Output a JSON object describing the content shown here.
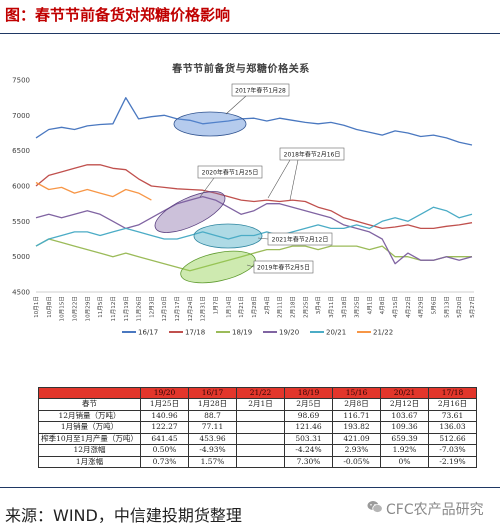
{
  "header": {
    "title": "图：春节节前备货对郑糖价格影响"
  },
  "chart_data": {
    "type": "line",
    "title": "春节节前备货与郑糖价格关系",
    "xlabel": "",
    "ylabel": "",
    "ylim": [
      4500,
      7500
    ],
    "yticks": [
      7500,
      7000,
      6500,
      6000,
      5500,
      5000,
      4500
    ],
    "grid": false,
    "legend_position": "bottom",
    "categories": [
      "10月1日",
      "10月8日",
      "10月15日",
      "10月22日",
      "10月29日",
      "11月5日",
      "11月12日",
      "11月19日",
      "11月26日",
      "12月3日",
      "12月10日",
      "12月17日",
      "12月24日",
      "12月31日",
      "1月7日",
      "1月14日",
      "1月21日",
      "1月28日",
      "2月4日",
      "2月11日",
      "2月18日",
      "2月25日",
      "3月4日",
      "3月11日",
      "3月18日",
      "3月25日",
      "4月1日",
      "4月8日",
      "4月15日",
      "4月22日",
      "4月29日",
      "5月6日",
      "5月13日",
      "5月20日",
      "5月27日"
    ],
    "series": [
      {
        "name": "16/17",
        "color": "#4A78C0",
        "values": [
          6680,
          6800,
          6830,
          6800,
          6850,
          6870,
          6880,
          7250,
          6950,
          6980,
          7000,
          6950,
          6930,
          6880,
          6900,
          6920,
          6950,
          6960,
          6920,
          6960,
          6930,
          6900,
          6880,
          6900,
          6860,
          6800,
          6760,
          6720,
          6780,
          6750,
          6700,
          6720,
          6680,
          6620,
          6580
        ]
      },
      {
        "name": "17/18",
        "color": "#C0504D",
        "values": [
          6000,
          6150,
          6200,
          6250,
          6300,
          6300,
          6250,
          6230,
          6100,
          6000,
          5980,
          5960,
          5950,
          5940,
          5900,
          5850,
          5800,
          5780,
          5800,
          5780,
          5800,
          5780,
          5700,
          5650,
          5550,
          5500,
          5450,
          5400,
          5420,
          5450,
          5400,
          5400,
          5430,
          5450,
          5480
        ]
      },
      {
        "name": "18/19",
        "color": "#9BBB59",
        "values": [
          5150,
          5250,
          5200,
          5150,
          5100,
          5050,
          5000,
          5050,
          5000,
          4950,
          4900,
          4850,
          4800,
          4850,
          4900,
          4950,
          5000,
          5050,
          5100,
          5100,
          5150,
          5150,
          5100,
          5150,
          5150,
          5150,
          5100,
          5150,
          5000,
          5000,
          4950,
          4950,
          5000,
          5000,
          5000
        ]
      },
      {
        "name": "19/20",
        "color": "#8064A2",
        "values": [
          5550,
          5600,
          5550,
          5600,
          5650,
          5600,
          5500,
          5400,
          5450,
          5550,
          5650,
          5750,
          5800,
          5850,
          5800,
          5700,
          5600,
          5650,
          5750,
          5750,
          5700,
          5650,
          5600,
          5550,
          5450,
          5400,
          5350,
          5250,
          4900,
          5050,
          4950,
          4950,
          5000,
          4950,
          5000
        ]
      },
      {
        "name": "20/21",
        "color": "#4BACC6",
        "values": [
          5150,
          5250,
          5300,
          5350,
          5350,
          5300,
          5350,
          5400,
          5350,
          5300,
          5250,
          5250,
          5300,
          5350,
          5300,
          5250,
          5300,
          5300,
          5350,
          5300,
          5350,
          5400,
          5450,
          5400,
          5400,
          5450,
          5400,
          5500,
          5550,
          5500,
          5600,
          5700,
          5650,
          5550,
          5600
        ]
      },
      {
        "name": "21/22",
        "color": "#F79646",
        "values": [
          6050,
          5950,
          5980,
          5900,
          5950,
          5900,
          5850,
          5950,
          5900,
          5800,
          null,
          null,
          null,
          null,
          null,
          null,
          null,
          null,
          null,
          null,
          null,
          null,
          null,
          null,
          null,
          null,
          null,
          null,
          null,
          null,
          null,
          null,
          null,
          null,
          null
        ]
      }
    ],
    "annotations": [
      "2017年春节1月28",
      "2018年春节2月16日",
      "2020年春节1月25日",
      "2021年春节2月12日",
      "2019年春节2月5日"
    ]
  },
  "table": {
    "headers": [
      "",
      "19/20",
      "16/17",
      "21/22",
      "18/19",
      "15/16",
      "20/21",
      "17/18"
    ],
    "rows": [
      {
        "label": "春节",
        "cells": [
          "1月25日",
          "1月28日",
          "2月1日",
          "2月5日",
          "2月8日",
          "2月12日",
          "2月16日"
        ]
      },
      {
        "label": "12月销量（万吨）",
        "cells": [
          "140.96",
          "88.7",
          "",
          "98.69",
          "116.71",
          "103.67",
          "73.61"
        ]
      },
      {
        "label": "1月销量（万吨）",
        "cells": [
          "122.27",
          "77.11",
          "",
          "121.46",
          "193.82",
          "109.36",
          "136.03"
        ]
      },
      {
        "label": "榨季10月至1月产量（万吨）",
        "cells": [
          "641.45",
          "453.96",
          "",
          "503.31",
          "421.09",
          "659.39",
          "512.66"
        ]
      },
      {
        "label": "12月涨幅",
        "cells": [
          "0.50%",
          "-4.93%",
          "",
          "-4.24%",
          "2.93%",
          "1.92%",
          "-7.03%"
        ]
      },
      {
        "label": "1月涨幅",
        "cells": [
          "0.73%",
          "1.57%",
          "",
          "7.30%",
          "-0.05%",
          "0%",
          "-2.19%"
        ]
      }
    ]
  },
  "footer": {
    "source": "来源：WIND，中信建投期货整理",
    "watermark": "CFC农产品研究",
    "watermark_icon": "wechat-icon"
  }
}
